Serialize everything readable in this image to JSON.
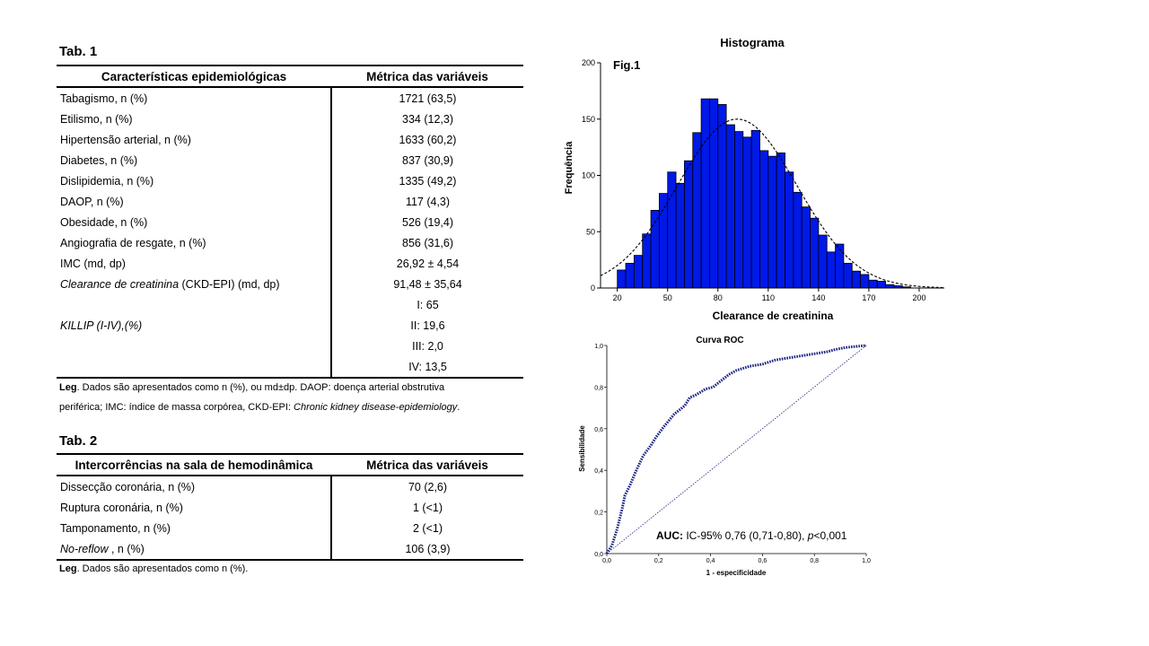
{
  "tab1": {
    "title": "Tab. 1",
    "headers": [
      "Características epidemiológicas",
      "Métrica das variáveis"
    ],
    "rows": [
      {
        "label": "Tabagismo, n (%)",
        "value": "1721 (63,5)"
      },
      {
        "label": "Etilismo, n (%)",
        "value": "334 (12,3)"
      },
      {
        "label": "Hipertensão arterial, n (%)",
        "value": "1633 (60,2)"
      },
      {
        "label": "Diabetes, n (%)",
        "value": "837 (30,9)"
      },
      {
        "label": "Dislipidemia, n (%)",
        "value": "1335 (49,2)"
      },
      {
        "label": "DAOP, n (%)",
        "value": "117 (4,3)"
      },
      {
        "label": "Obesidade, n (%)",
        "value": "526 (19,4)"
      },
      {
        "label": "Angiografia de resgate, n (%)",
        "value": "856 (31,6)"
      },
      {
        "label": "IMC (md, dp)",
        "value": "26,92 ± 4,54"
      },
      {
        "label_italic": "Clearance de creatinina",
        "label_rest": " (CKD-EPI) (md, dp)",
        "value": "91,48 ± 35,64"
      }
    ],
    "killip": {
      "label": "KILLIP (I-IV),(%)",
      "values": [
        "I: 65",
        "II: 19,6",
        "III: 2,0",
        "IV: 13,5"
      ]
    },
    "legend": {
      "bold": "Leg",
      "line1": ". Dados são apresentados como n (%), ou md±dp. DAOP: doença arterial obstrutiva",
      "line2_start": "periférica; IMC: índice de massa corpórea, CKD-EPI: ",
      "line2_italic": "Chronic kidney disease-epidemiology",
      "line2_end": "."
    }
  },
  "tab2": {
    "title": "Tab. 2",
    "headers": [
      "Intercorrências na sala de hemodinâmica",
      "Métrica das variáveis"
    ],
    "rows": [
      {
        "label": "Dissecção coronária, n (%)",
        "value": "70 (2,6)"
      },
      {
        "label": "Ruptura coronária, n (%)",
        "value": "1 (<1)"
      },
      {
        "label": "Tamponamento, n (%)",
        "value": "2 (<1)"
      },
      {
        "label_italic": "No-reflow",
        "label_rest": " , n (%)",
        "value": "106 (3,9)"
      }
    ],
    "legend": {
      "bold": "Leg",
      "text": ". Dados são apresentados como n (%)."
    }
  },
  "chart_data": [
    {
      "type": "bar",
      "title": "Histograma",
      "annotation": "Fig.1",
      "xlabel": "Clearance de creatinina",
      "ylabel": "Frequência",
      "xlim": [
        10,
        215
      ],
      "ylim": [
        0,
        200
      ],
      "xticks": [
        20,
        50,
        80,
        110,
        140,
        170,
        200
      ],
      "yticks": [
        0,
        50,
        100,
        150,
        200
      ],
      "bin_start": 20,
      "bin_width": 5,
      "values": [
        16,
        22,
        29,
        48,
        69,
        84,
        103,
        93,
        113,
        138,
        168,
        168,
        163,
        145,
        139,
        134,
        140,
        122,
        117,
        120,
        103,
        85,
        72,
        62,
        47,
        32,
        39,
        22,
        15,
        12,
        7,
        6,
        3,
        2,
        1,
        0,
        0
      ],
      "normal_curve": {
        "mean": 91.48,
        "sd": 35.64,
        "peak": 150,
        "style": "dashed"
      },
      "bar_color": "#0019e6"
    },
    {
      "type": "line",
      "title": "Curva ROC",
      "xlabel": "1 - especificidade",
      "ylabel": "Sensibilidade",
      "xlim": [
        0,
        1
      ],
      "ylim": [
        0,
        1
      ],
      "xticks": [
        "0,0",
        "0,2",
        "0,4",
        "0,6",
        "0,8",
        "1,0"
      ],
      "yticks": [
        "0,0",
        "0,2",
        "0,4",
        "0,6",
        "0,8",
        "1,0"
      ],
      "series": [
        {
          "name": "",
          "x": [
            0,
            0.02,
            0.04,
            0.06,
            0.07,
            0.09,
            0.11,
            0.14,
            0.17,
            0.19,
            0.22,
            0.26,
            0.3,
            0.32,
            0.34,
            0.38,
            0.41,
            0.44,
            0.47,
            0.5,
            0.55,
            0.6,
            0.65,
            0.7,
            0.75,
            0.8,
            0.85,
            0.88,
            0.92,
            1.0
          ],
          "y": [
            0,
            0.04,
            0.12,
            0.22,
            0.28,
            0.33,
            0.39,
            0.47,
            0.52,
            0.56,
            0.61,
            0.67,
            0.71,
            0.75,
            0.76,
            0.79,
            0.8,
            0.83,
            0.86,
            0.88,
            0.9,
            0.91,
            0.93,
            0.94,
            0.95,
            0.96,
            0.97,
            0.98,
            0.99,
            1.0
          ],
          "style": "dotted",
          "color": "#1a237e"
        },
        {
          "name": "",
          "x": [
            0,
            1
          ],
          "y": [
            0,
            1
          ],
          "style": "dotted-diagonal",
          "color": "#1a237e"
        }
      ],
      "annotation": {
        "bold": "AUC:",
        "text": " IC-95%  0,76 (0,71-0,80),  ",
        "p_italic": "p",
        "p_rest": "<0,001"
      }
    }
  ]
}
